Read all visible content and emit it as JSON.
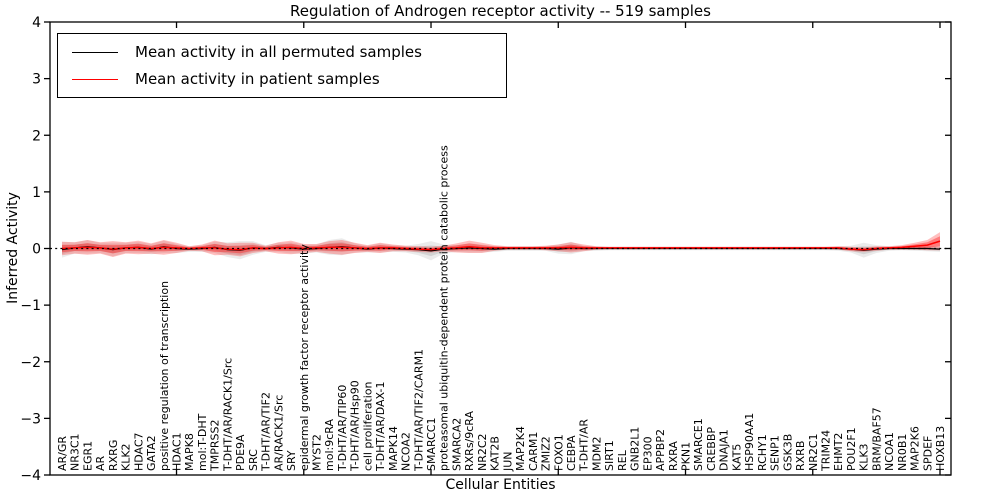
{
  "title": "Regulation of Androgen receptor activity -- 519 samples",
  "legend": {
    "items": [
      {
        "label": "Mean activity in all permuted samples",
        "color": "#000000"
      },
      {
        "label": "Mean activity in patient samples",
        "color": "#ff0000"
      }
    ]
  },
  "axes": {
    "xlabel": "Cellular Entities",
    "ylabel": "Inferred Activity"
  },
  "chart_data": {
    "type": "line",
    "title": "Regulation of Androgen receptor activity -- 519 samples",
    "xlabel": "Cellular Entities",
    "ylabel": "Inferred Activity",
    "ylim": [
      -4,
      4
    ],
    "yticks": [
      {
        "v": 4,
        "label": "4"
      },
      {
        "v": 3,
        "label": "3"
      },
      {
        "v": 2,
        "label": "2"
      },
      {
        "v": 1,
        "label": "1"
      },
      {
        "v": 0,
        "label": "0"
      },
      {
        "v": -1,
        "label": "−1"
      },
      {
        "v": -2,
        "label": "−2"
      },
      {
        "v": -3,
        "label": "−3"
      },
      {
        "v": -4,
        "label": "−4"
      }
    ],
    "x_major_tick_indices": [
      9,
      19,
      29,
      39,
      49,
      59,
      69
    ],
    "grid": false,
    "legend_position": "upper left",
    "zero_line": {
      "style": "dotted",
      "color": "#000000",
      "y": 0
    },
    "categories": [
      "AR/GR",
      "NR3C1",
      "EGR1",
      "AR",
      "RXRG",
      "KLK2",
      "HDAC7",
      "GATA2",
      "positive regulation of transcription",
      "HDAC1",
      "MAPK8",
      "mol:T-DHT",
      "TMPRSS2",
      "T-DHT/AR/RACK1/Src",
      "PDE9A",
      "SRC",
      "T-DHT/AR/TIF2",
      "AR/RACK1/Src",
      "SRY",
      "epidermal growth factor receptor activity",
      "MYST2",
      "mol:9cRA",
      "T-DHT/AR/TIP60",
      "T-DHT/AR/Hsp90",
      "cell proliferation",
      "T-DHT/AR/DAX-1",
      "MAPK14",
      "NCOA2",
      "T-DHT/AR/TIF2/CARM1",
      "SMARCC1",
      "proteasomal ubiquitin-dependent protein catabolic process",
      "SMARCA2",
      "RXRs/9cRA",
      "NR2C2",
      "KAT2B",
      "JUN",
      "MAP2K4",
      "CARM1",
      "ZMIZ2",
      "FOXO1",
      "CEBPA",
      "T-DHT/AR",
      "MDM2",
      "SIRT1",
      "REL",
      "GNB2L1",
      "EP300",
      "APPBP2",
      "RXRA",
      "PKN1",
      "SMARCE1",
      "CREBBP",
      "DNAJA1",
      "KAT5",
      "HSP90AA1",
      "RCHY1",
      "SENP1",
      "GSK3B",
      "RXRB",
      "NR2C1",
      "TRIM24",
      "EHMT2",
      "POU2F1",
      "KLK3",
      "BRM/BAF57",
      "NCOA1",
      "NR0B1",
      "MAP2K6",
      "SPDEF",
      "HOXB13"
    ],
    "series": [
      {
        "name": "Mean activity in all permuted samples",
        "line_color": "#000000",
        "band_color": "#808080",
        "values": [
          -0.02,
          0.01,
          0.03,
          0.01,
          -0.02,
          0.01,
          0.02,
          -0.01,
          0.03,
          0.0,
          -0.01,
          0.0,
          0.02,
          -0.02,
          -0.03,
          0.01,
          0.0,
          0.02,
          0.01,
          -0.01,
          0.0,
          0.02,
          0.03,
          0.01,
          -0.01,
          0.01,
          0.0,
          -0.01,
          -0.02,
          -0.04,
          -0.01,
          0.0,
          0.01,
          0.0,
          -0.01,
          0.0,
          0.0,
          0.0,
          0.0,
          -0.01,
          0.01,
          0.0,
          0.0,
          0.0,
          0.0,
          0.0,
          0.0,
          0.0,
          0.0,
          0.0,
          0.0,
          0.0,
          0.0,
          0.0,
          0.0,
          0.0,
          0.0,
          0.0,
          0.0,
          0.0,
          0.0,
          0.0,
          -0.01,
          -0.03,
          -0.01,
          0.0,
          0.0,
          0.0,
          0.0,
          -0.01
        ],
        "std": [
          0.14,
          0.1,
          0.12,
          0.09,
          0.12,
          0.09,
          0.1,
          0.09,
          0.11,
          0.08,
          0.05,
          0.06,
          0.1,
          0.13,
          0.16,
          0.12,
          0.06,
          0.08,
          0.1,
          0.08,
          0.07,
          0.13,
          0.15,
          0.08,
          0.06,
          0.08,
          0.06,
          0.06,
          0.1,
          0.17,
          0.08,
          0.06,
          0.08,
          0.07,
          0.05,
          0.04,
          0.04,
          0.04,
          0.04,
          0.08,
          0.11,
          0.05,
          0.04,
          0.03,
          0.03,
          0.03,
          0.03,
          0.03,
          0.03,
          0.03,
          0.03,
          0.03,
          0.03,
          0.03,
          0.03,
          0.03,
          0.03,
          0.03,
          0.03,
          0.03,
          0.03,
          0.04,
          0.06,
          0.13,
          0.07,
          0.04,
          0.03,
          0.04,
          0.05,
          0.05
        ]
      },
      {
        "name": "Mean activity in patient samples",
        "line_color": "#ff0000",
        "band_color": "#ff0000",
        "values": [
          0.0,
          0.01,
          0.02,
          0.01,
          -0.01,
          0.01,
          0.02,
          0.0,
          0.02,
          0.01,
          0.0,
          0.01,
          0.01,
          -0.01,
          -0.02,
          0.01,
          0.0,
          0.01,
          0.02,
          0.0,
          0.01,
          0.02,
          0.02,
          0.01,
          0.0,
          0.01,
          0.01,
          0.0,
          -0.01,
          -0.02,
          0.0,
          0.01,
          0.03,
          0.01,
          0.01,
          0.01,
          0.01,
          0.01,
          0.01,
          0.01,
          0.02,
          0.01,
          0.01,
          0.01,
          0.01,
          0.01,
          0.01,
          0.01,
          0.01,
          0.01,
          0.01,
          0.01,
          0.01,
          0.01,
          0.01,
          0.01,
          0.01,
          0.01,
          0.01,
          0.01,
          0.01,
          0.01,
          -0.01,
          -0.02,
          0.0,
          0.01,
          0.02,
          0.04,
          0.06,
          0.13
        ],
        "std": [
          0.12,
          0.1,
          0.13,
          0.1,
          0.14,
          0.1,
          0.12,
          0.09,
          0.13,
          0.09,
          0.04,
          0.06,
          0.13,
          0.1,
          0.12,
          0.09,
          0.05,
          0.1,
          0.12,
          0.08,
          0.07,
          0.11,
          0.13,
          0.09,
          0.06,
          0.09,
          0.06,
          0.05,
          0.05,
          0.05,
          0.05,
          0.08,
          0.11,
          0.09,
          0.05,
          0.03,
          0.03,
          0.03,
          0.04,
          0.06,
          0.09,
          0.06,
          0.03,
          0.02,
          0.02,
          0.02,
          0.02,
          0.02,
          0.02,
          0.02,
          0.02,
          0.02,
          0.02,
          0.02,
          0.02,
          0.02,
          0.02,
          0.02,
          0.02,
          0.02,
          0.02,
          0.03,
          0.04,
          0.04,
          0.04,
          0.03,
          0.04,
          0.06,
          0.09,
          0.16
        ]
      }
    ]
  }
}
